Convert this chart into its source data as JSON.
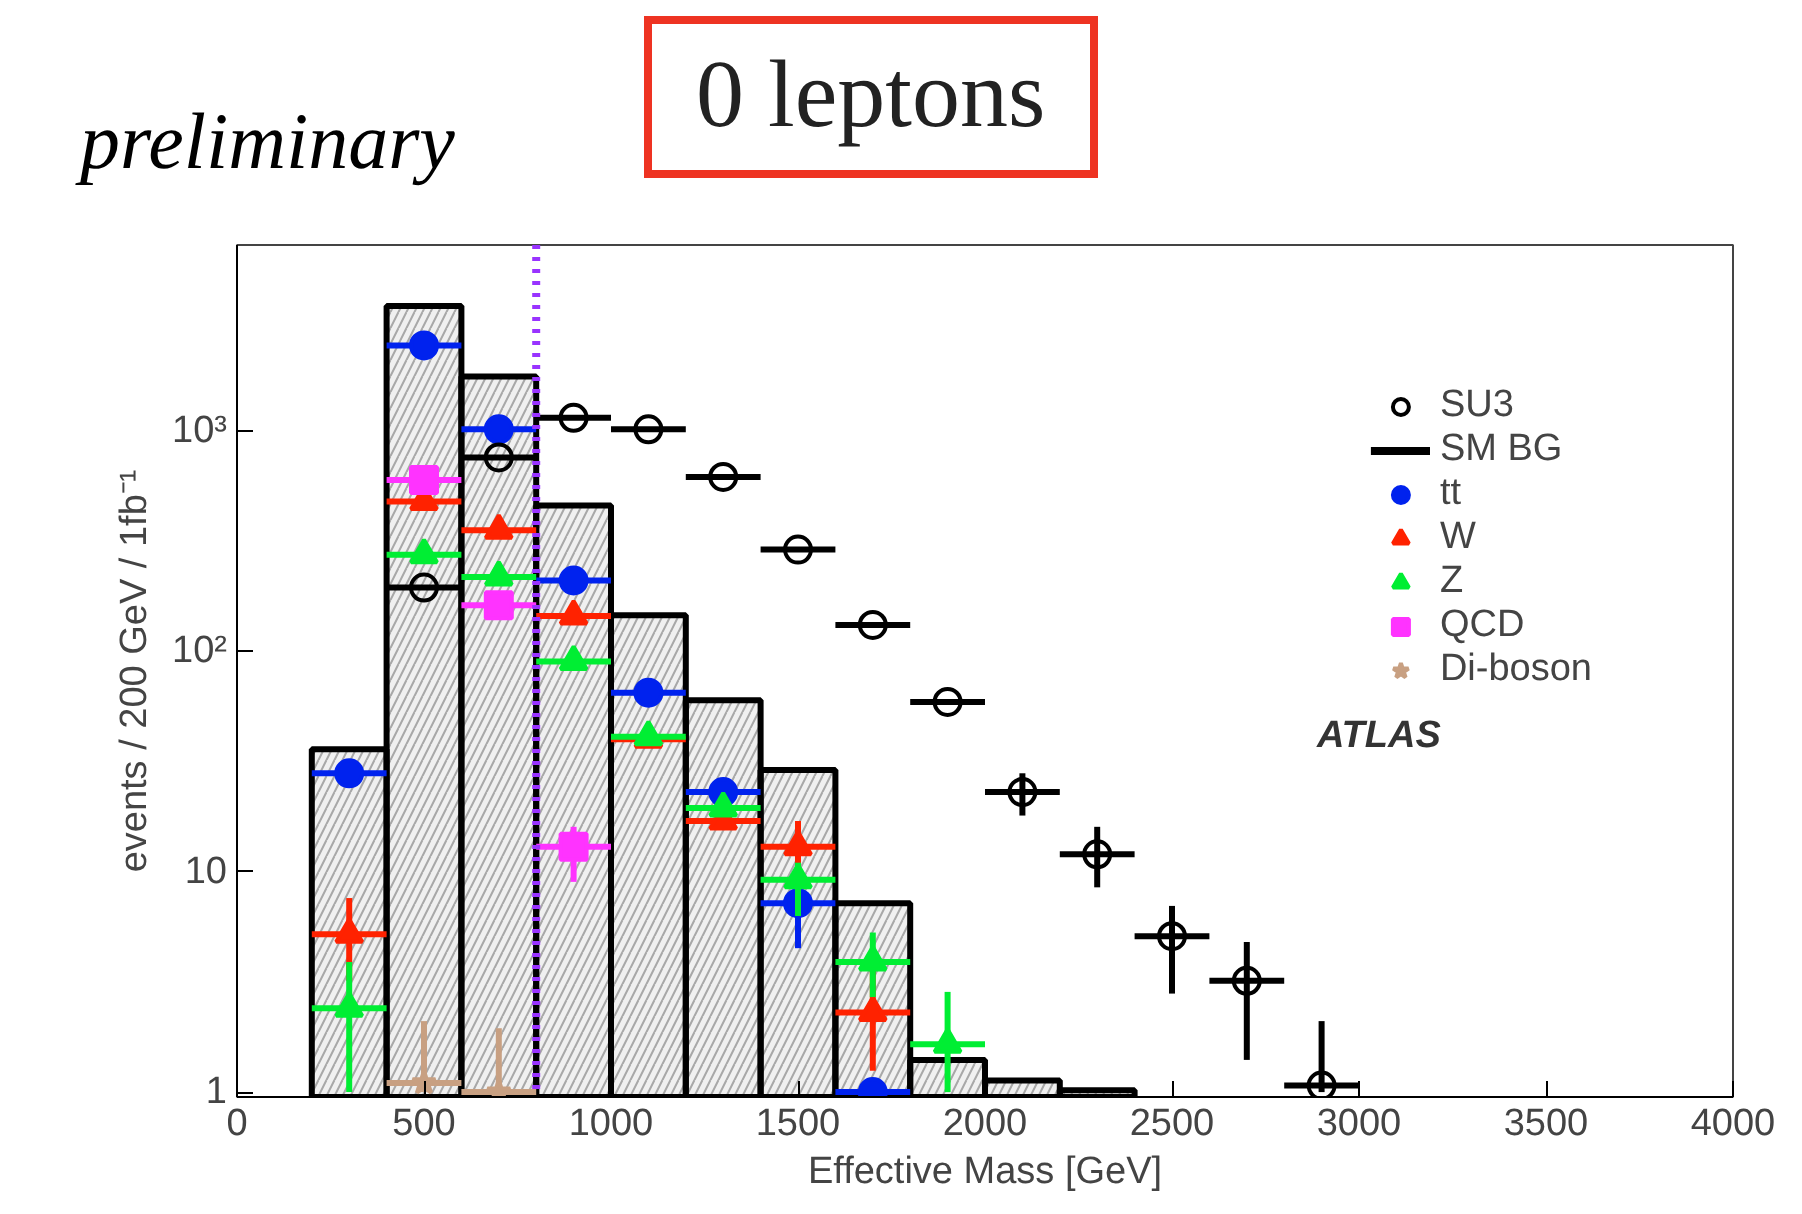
{
  "chart_data": {
    "type": "scatter",
    "title": "0 leptons",
    "xlabel": "Effective Mass [GeV]",
    "ylabel": "events / 200 GeV / 1fb⁻¹",
    "annotations": [
      "preliminary",
      "ATLAS"
    ],
    "xlim": [
      0,
      4000
    ],
    "xticks": [
      0,
      500,
      1000,
      1500,
      2000,
      2500,
      3000,
      3500,
      4000
    ],
    "ylim": [
      0.95,
      7000
    ],
    "yticks": [
      1,
      10,
      {
        "value": 100,
        "label": "10²"
      },
      {
        "value": 1000,
        "label": "10³"
      }
    ],
    "log": "y",
    "grid": false,
    "legend": "top right",
    "ref_lines": [
      {
        "axis": "x",
        "value": 800,
        "label": null,
        "color": "#9933ff",
        "line_style": "dotted"
      }
    ],
    "series": [
      {
        "name": "SU3",
        "marker": "open_circle",
        "color": "#000000",
        "x": [
          500,
          700,
          900,
          1100,
          1300,
          1500,
          1700,
          1900,
          2100,
          2300,
          2500,
          2700,
          2900
        ],
        "values": [
          195,
          760,
          1150,
          1020,
          620,
          290,
          132,
          59,
          23,
          12,
          5.1,
          3.2,
          1.07
        ],
        "xerrors": [
          100,
          100,
          100,
          100,
          100,
          100,
          100,
          100,
          100,
          100,
          100,
          100,
          100
        ],
        "errors": [
          null,
          null,
          null,
          null,
          null,
          null,
          null,
          null,
          [
            18,
            28
          ],
          [
            8.5,
            16
          ],
          [
            2.8,
            7.0
          ],
          [
            1.4,
            4.8
          ],
          [
            1,
            2.1
          ]
        ]
      },
      {
        "name": "SM BG",
        "type": "histogram",
        "color": "#000000",
        "bins": [
          200,
          400,
          600,
          800,
          1000,
          1200,
          1400,
          1600,
          1800,
          2000,
          2200,
          2400
        ],
        "values": [
          36,
          3700,
          1770,
          460,
          146,
          60,
          29,
          7.2,
          1.4,
          1.13,
          1.02
        ]
      },
      {
        "name": "tt",
        "marker": "circle",
        "color": "#0022ee",
        "x": [
          300,
          500,
          700,
          900,
          1100,
          1300,
          1500,
          1700
        ],
        "values": [
          28,
          2450,
          1020,
          210,
          65,
          23,
          7.2,
          1.0
        ],
        "xerrors": [
          100,
          100,
          100,
          100,
          100,
          100,
          100,
          100
        ],
        "errors": [
          null,
          null,
          null,
          null,
          null,
          null,
          [
            4.5,
            10.4
          ],
          null
        ]
      },
      {
        "name": "W",
        "marker": "triangle",
        "color": "#ff2200",
        "x": [
          300,
          500,
          700,
          900,
          1100,
          1300,
          1500,
          1700
        ],
        "values": [
          5.2,
          480,
          355,
          145,
          40,
          17,
          13,
          2.3
        ],
        "xerrors": [
          100,
          100,
          100,
          100,
          100,
          100,
          100,
          100
        ],
        "errors": [
          [
            3.2,
            7.6
          ],
          null,
          null,
          null,
          null,
          null,
          [
            10,
            17
          ],
          [
            1.25,
            3.6
          ]
        ]
      },
      {
        "name": "Z",
        "marker": "triangle",
        "color": "#00ee33",
        "x": [
          300,
          500,
          700,
          900,
          1100,
          1300,
          1500,
          1700,
          1900
        ],
        "values": [
          2.4,
          275,
          218,
          90,
          41,
          19.5,
          9.2,
          3.9,
          1.65
        ],
        "xerrors": [
          100,
          100,
          100,
          100,
          100,
          100,
          100,
          100,
          100
        ],
        "errors": [
          [
            1,
            3.9
          ],
          null,
          null,
          null,
          null,
          null,
          [
            6.3,
            11
          ],
          [
            2.7,
            5.3
          ],
          [
            1,
            2.85
          ]
        ]
      },
      {
        "name": "QCD",
        "marker": "square",
        "color": "#ff33ff",
        "x": [
          500,
          700,
          900
        ],
        "values": [
          600,
          162,
          13
        ],
        "xerrors": [
          100,
          100,
          100
        ],
        "errors": [
          null,
          null,
          [
            9,
            16
          ]
        ]
      },
      {
        "name": "Di-boson",
        "marker": "star",
        "color": "#c8a082",
        "x": [
          500,
          700
        ],
        "values": [
          1.1,
          1.0
        ],
        "xerrors": [
          100,
          100
        ],
        "errors": [
          [
            1,
            2.1
          ],
          [
            1,
            1.95
          ]
        ]
      }
    ]
  }
}
